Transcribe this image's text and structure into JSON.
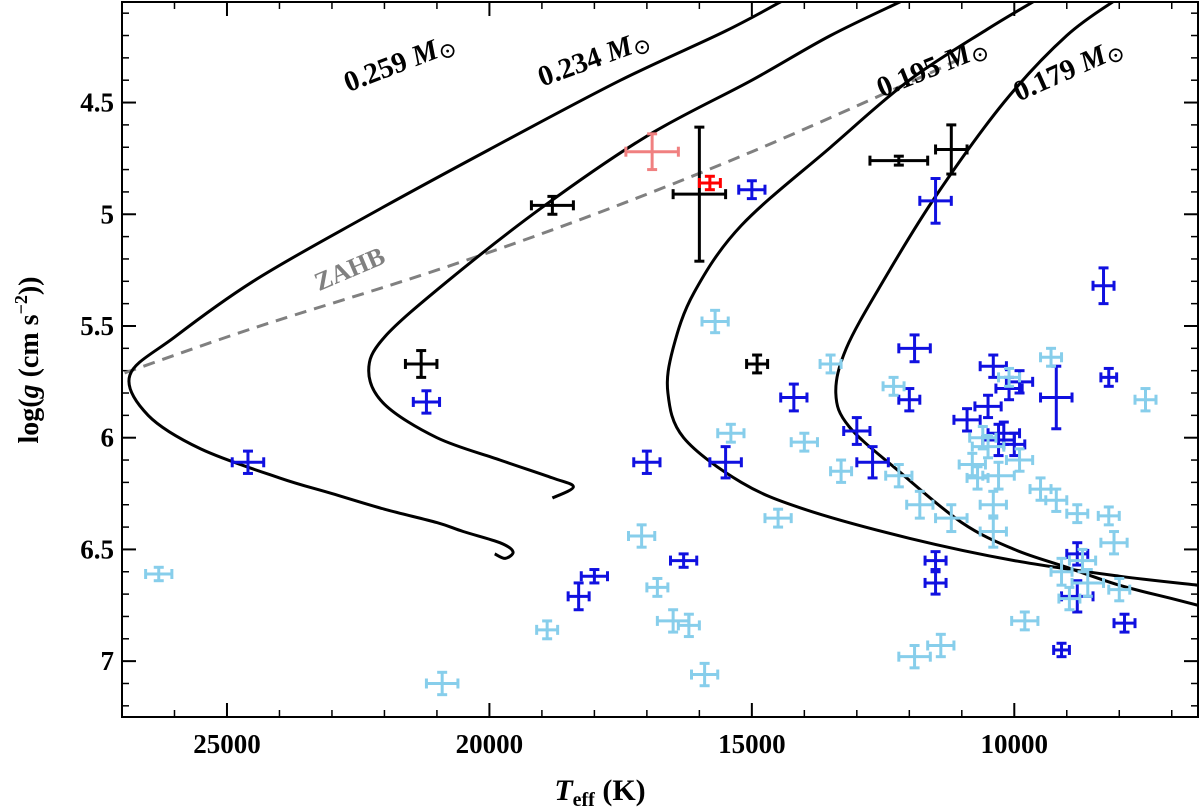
{
  "chart_data": {
    "type": "scatter",
    "title": "",
    "xlabel": {
      "main": "T",
      "sub": "eff",
      "unit": " (K)"
    },
    "ylabel": {
      "pre": "log(",
      "g": "g",
      "mid": " (cm s",
      "exp": "−2",
      "post": "))"
    },
    "x_reversed": true,
    "xlim": [
      27000,
      6500
    ],
    "ylim": [
      7.25,
      4.05
    ],
    "xticks": [
      25000,
      20000,
      15000,
      10000
    ],
    "xtick_labels": [
      "25000",
      "20000",
      "15000",
      "10000"
    ],
    "yticks": [
      4.5,
      5.0,
      5.5,
      6.0,
      6.5,
      7.0
    ],
    "ytick_labels": [
      "4.5",
      "5",
      "5.5",
      "6",
      "6.5",
      "7"
    ],
    "tracks": [
      {
        "name": "0.259 M⊙",
        "label": "0.259",
        "color": "#000000",
        "points": [
          [
            14300,
            4.03
          ],
          [
            15500,
            4.18
          ],
          [
            17500,
            4.4
          ],
          [
            20000,
            4.71
          ],
          [
            22500,
            5.03
          ],
          [
            24500,
            5.3
          ],
          [
            26000,
            5.55
          ],
          [
            26850,
            5.72
          ],
          [
            26500,
            5.9
          ],
          [
            25500,
            6.05
          ],
          [
            24000,
            6.18
          ],
          [
            23000,
            6.25
          ],
          [
            22000,
            6.32
          ],
          [
            21000,
            6.38
          ],
          [
            20500,
            6.42
          ],
          [
            19800,
            6.47
          ],
          [
            19550,
            6.51
          ],
          [
            19700,
            6.54
          ],
          [
            19900,
            6.52
          ]
        ]
      },
      {
        "name": "0.234 M⊙",
        "label": "0.234",
        "color": "#000000",
        "points": [
          [
            12000,
            4.03
          ],
          [
            13500,
            4.2
          ],
          [
            15000,
            4.4
          ],
          [
            17000,
            4.65
          ],
          [
            19000,
            4.97
          ],
          [
            20800,
            5.3
          ],
          [
            22000,
            5.55
          ],
          [
            22300,
            5.7
          ],
          [
            22000,
            5.85
          ],
          [
            21000,
            6.0
          ],
          [
            19800,
            6.1
          ],
          [
            18800,
            6.18
          ],
          [
            18400,
            6.22
          ],
          [
            18800,
            6.27
          ]
        ]
      },
      {
        "name": "0.195 M⊙",
        "label": "0.195",
        "color": "#000000",
        "points": [
          [
            9500,
            4.03
          ],
          [
            10500,
            4.17
          ],
          [
            12000,
            4.4
          ],
          [
            13500,
            4.7
          ],
          [
            15200,
            5.05
          ],
          [
            16100,
            5.35
          ],
          [
            16500,
            5.6
          ],
          [
            16600,
            5.8
          ],
          [
            16300,
            6.0
          ],
          [
            15200,
            6.2
          ],
          [
            14000,
            6.32
          ],
          [
            12000,
            6.45
          ],
          [
            10000,
            6.55
          ],
          [
            8000,
            6.62
          ],
          [
            6500,
            6.66
          ]
        ]
      },
      {
        "name": "0.179 M⊙",
        "label": "0.179",
        "color": "#000000",
        "points": [
          [
            8000,
            4.03
          ],
          [
            9000,
            4.2
          ],
          [
            10200,
            4.5
          ],
          [
            11500,
            4.92
          ],
          [
            12500,
            5.3
          ],
          [
            13200,
            5.6
          ],
          [
            13400,
            5.8
          ],
          [
            13150,
            5.95
          ],
          [
            12200,
            6.15
          ],
          [
            11000,
            6.38
          ],
          [
            10000,
            6.5
          ],
          [
            9000,
            6.58
          ],
          [
            8000,
            6.66
          ],
          [
            7000,
            6.72
          ],
          [
            6500,
            6.75
          ]
        ]
      }
    ],
    "zahb": {
      "label": "ZAHB",
      "color": "#808080",
      "points": [
        [
          26950,
          5.71
        ],
        [
          24500,
          5.51
        ],
        [
          21000,
          5.25
        ],
        [
          18000,
          5.0
        ],
        [
          15000,
          4.72
        ],
        [
          12000,
          4.41
        ],
        [
          11000,
          4.3
        ]
      ]
    },
    "series": [
      {
        "name": "",
        "color": "#000000",
        "points": [
          [
            21300,
            5.67,
            300,
            0.06
          ],
          [
            18800,
            4.96,
            400,
            0.04
          ],
          [
            16000,
            4.91,
            500,
            0.3
          ],
          [
            14900,
            5.67,
            200,
            0.04
          ],
          [
            12200,
            4.76,
            550,
            0.02
          ],
          [
            11200,
            4.71,
            300,
            0.11
          ]
        ]
      },
      {
        "name": "",
        "color": "#f08080",
        "points": [
          [
            16900,
            4.72,
            500,
            0.08
          ]
        ]
      },
      {
        "name": "",
        "color": "#ff0000",
        "points": [
          [
            15800,
            4.86,
            200,
            0.03
          ]
        ]
      },
      {
        "name": "",
        "color": "#1010e0",
        "points": [
          [
            24600,
            6.11,
            300,
            0.05
          ],
          [
            21200,
            5.84,
            250,
            0.05
          ],
          [
            17000,
            6.11,
            250,
            0.05
          ],
          [
            18000,
            6.62,
            250,
            0.03
          ],
          [
            18300,
            6.71,
            200,
            0.06
          ],
          [
            16300,
            6.55,
            250,
            0.03
          ],
          [
            15500,
            6.11,
            300,
            0.07
          ],
          [
            15000,
            4.89,
            250,
            0.04
          ],
          [
            14200,
            5.82,
            250,
            0.06
          ],
          [
            13000,
            5.97,
            250,
            0.06
          ],
          [
            12700,
            6.11,
            300,
            0.07
          ],
          [
            11900,
            5.6,
            300,
            0.06
          ],
          [
            12000,
            5.83,
            200,
            0.05
          ],
          [
            11500,
            4.94,
            300,
            0.1
          ],
          [
            11500,
            6.55,
            200,
            0.04
          ],
          [
            11500,
            6.65,
            200,
            0.05
          ],
          [
            10900,
            5.92,
            250,
            0.05
          ],
          [
            10500,
            5.86,
            250,
            0.05
          ],
          [
            10400,
            5.68,
            250,
            0.05
          ],
          [
            10300,
            6.01,
            300,
            0.07
          ],
          [
            10200,
            5.98,
            300,
            0.05
          ],
          [
            10100,
            5.78,
            250,
            0.05
          ],
          [
            9900,
            5.75,
            250,
            0.05
          ],
          [
            10000,
            6.03,
            200,
            0.05
          ],
          [
            9200,
            5.82,
            300,
            0.14
          ],
          [
            8800,
            6.52,
            200,
            0.05
          ],
          [
            8800,
            6.71,
            300,
            0.07
          ],
          [
            8300,
            5.32,
            200,
            0.08
          ],
          [
            8200,
            5.73,
            150,
            0.04
          ],
          [
            7900,
            6.83,
            200,
            0.04
          ],
          [
            9100,
            6.95,
            150,
            0.03
          ]
        ]
      },
      {
        "name": "",
        "color": "#87ceeb",
        "points": [
          [
            26300,
            6.61,
            250,
            0.03
          ],
          [
            20900,
            7.1,
            300,
            0.05
          ],
          [
            18900,
            6.86,
            200,
            0.04
          ],
          [
            17100,
            6.44,
            250,
            0.05
          ],
          [
            16800,
            6.67,
            200,
            0.04
          ],
          [
            16500,
            6.82,
            300,
            0.05
          ],
          [
            16200,
            6.84,
            200,
            0.05
          ],
          [
            15900,
            7.06,
            250,
            0.05
          ],
          [
            15700,
            5.48,
            250,
            0.05
          ],
          [
            15400,
            5.98,
            250,
            0.04
          ],
          [
            14500,
            6.36,
            250,
            0.04
          ],
          [
            14000,
            6.02,
            250,
            0.04
          ],
          [
            13500,
            5.67,
            200,
            0.04
          ],
          [
            13300,
            6.15,
            200,
            0.05
          ],
          [
            12300,
            5.77,
            200,
            0.04
          ],
          [
            12200,
            6.17,
            250,
            0.05
          ],
          [
            11800,
            6.3,
            250,
            0.06
          ],
          [
            11900,
            6.98,
            300,
            0.05
          ],
          [
            11400,
            6.93,
            250,
            0.05
          ],
          [
            11200,
            6.36,
            300,
            0.06
          ],
          [
            10800,
            6.12,
            250,
            0.05
          ],
          [
            10700,
            6.18,
            200,
            0.05
          ],
          [
            10600,
            6.0,
            250,
            0.05
          ],
          [
            10500,
            6.04,
            300,
            0.05
          ],
          [
            10400,
            6.3,
            250,
            0.06
          ],
          [
            10400,
            6.42,
            250,
            0.07
          ],
          [
            10300,
            6.17,
            300,
            0.06
          ],
          [
            10100,
            5.73,
            200,
            0.04
          ],
          [
            9900,
            6.1,
            250,
            0.05
          ],
          [
            9800,
            6.82,
            250,
            0.04
          ],
          [
            9500,
            6.23,
            200,
            0.05
          ],
          [
            9300,
            5.64,
            200,
            0.04
          ],
          [
            9200,
            6.28,
            200,
            0.05
          ],
          [
            8800,
            6.34,
            200,
            0.04
          ],
          [
            8700,
            6.55,
            250,
            0.05
          ],
          [
            8600,
            6.65,
            300,
            0.06
          ],
          [
            8200,
            6.35,
            200,
            0.04
          ],
          [
            8100,
            6.47,
            250,
            0.05
          ],
          [
            8000,
            6.68,
            200,
            0.05
          ],
          [
            7500,
            5.83,
            200,
            0.05
          ],
          [
            8950,
            6.72,
            200,
            0.05
          ],
          [
            9100,
            6.6,
            200,
            0.06
          ]
        ]
      }
    ]
  }
}
